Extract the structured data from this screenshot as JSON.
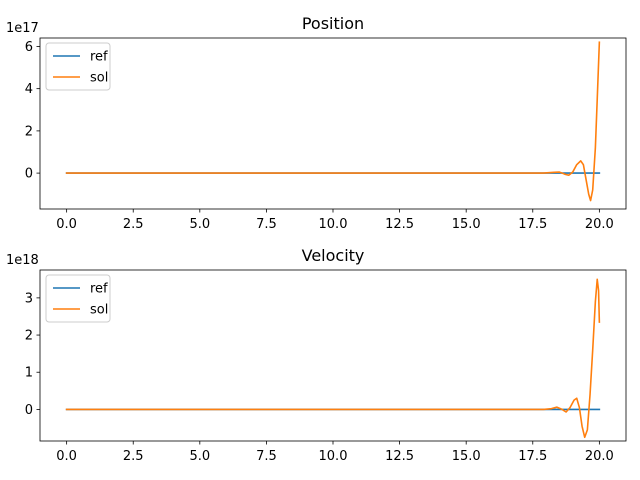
{
  "chart_data": [
    {
      "type": "line",
      "title": "Position",
      "xlabel": "",
      "ylabel": "",
      "y_offset_label": "1e17",
      "xlim": [
        -1.0,
        21.0
      ],
      "ylim": [
        -1.7,
        6.4
      ],
      "x_ticks": [
        0.0,
        2.5,
        5.0,
        7.5,
        10.0,
        12.5,
        15.0,
        17.5,
        20.0
      ],
      "x_tick_labels": [
        "0.0",
        "2.5",
        "5.0",
        "7.5",
        "10.0",
        "12.5",
        "15.0",
        "17.5",
        "20.0"
      ],
      "y_ticks": [
        0,
        2,
        4,
        6
      ],
      "y_tick_labels": [
        "0",
        "2",
        "4",
        "6"
      ],
      "grid": false,
      "legend_position": "top-left",
      "series": [
        {
          "name": "ref",
          "color": "#1f77b4",
          "points": [
            [
              0,
              0
            ],
            [
              20,
              0
            ]
          ]
        },
        {
          "name": "sol",
          "color": "#ff7f0e",
          "points": [
            [
              0,
              0
            ],
            [
              17.9,
              0
            ],
            [
              18.3,
              0.04
            ],
            [
              18.5,
              0.05
            ],
            [
              18.7,
              -0.05
            ],
            [
              18.85,
              -0.1
            ],
            [
              19.0,
              0.05
            ],
            [
              19.15,
              0.4
            ],
            [
              19.3,
              0.58
            ],
            [
              19.4,
              0.4
            ],
            [
              19.5,
              -0.3
            ],
            [
              19.6,
              -1.0
            ],
            [
              19.67,
              -1.3
            ],
            [
              19.75,
              -0.8
            ],
            [
              19.85,
              1.2
            ],
            [
              19.92,
              3.5
            ],
            [
              20.0,
              6.2
            ]
          ]
        }
      ]
    },
    {
      "type": "line",
      "title": "Velocity",
      "xlabel": "",
      "ylabel": "",
      "y_offset_label": "1e18",
      "xlim": [
        -1.0,
        21.0
      ],
      "ylim": [
        -0.85,
        3.75
      ],
      "x_ticks": [
        0.0,
        2.5,
        5.0,
        7.5,
        10.0,
        12.5,
        15.0,
        17.5,
        20.0
      ],
      "x_tick_labels": [
        "0.0",
        "2.5",
        "5.0",
        "7.5",
        "10.0",
        "12.5",
        "15.0",
        "17.5",
        "20.0"
      ],
      "y_ticks": [
        0,
        1,
        2,
        3
      ],
      "y_tick_labels": [
        "0",
        "1",
        "2",
        "3"
      ],
      "grid": false,
      "legend_position": "top-left",
      "series": [
        {
          "name": "ref",
          "color": "#1f77b4",
          "points": [
            [
              0,
              0
            ],
            [
              20,
              0
            ]
          ]
        },
        {
          "name": "sol",
          "color": "#ff7f0e",
          "points": [
            [
              0,
              0
            ],
            [
              17.9,
              0
            ],
            [
              18.2,
              0.02
            ],
            [
              18.4,
              0.06
            ],
            [
              18.6,
              0.0
            ],
            [
              18.75,
              -0.07
            ],
            [
              18.9,
              0.05
            ],
            [
              19.05,
              0.25
            ],
            [
              19.15,
              0.3
            ],
            [
              19.25,
              0.05
            ],
            [
              19.35,
              -0.45
            ],
            [
              19.45,
              -0.75
            ],
            [
              19.55,
              -0.55
            ],
            [
              19.65,
              0.4
            ],
            [
              19.75,
              1.6
            ],
            [
              19.85,
              2.9
            ],
            [
              19.92,
              3.5
            ],
            [
              19.97,
              3.2
            ],
            [
              20.0,
              2.35
            ]
          ]
        }
      ]
    }
  ]
}
